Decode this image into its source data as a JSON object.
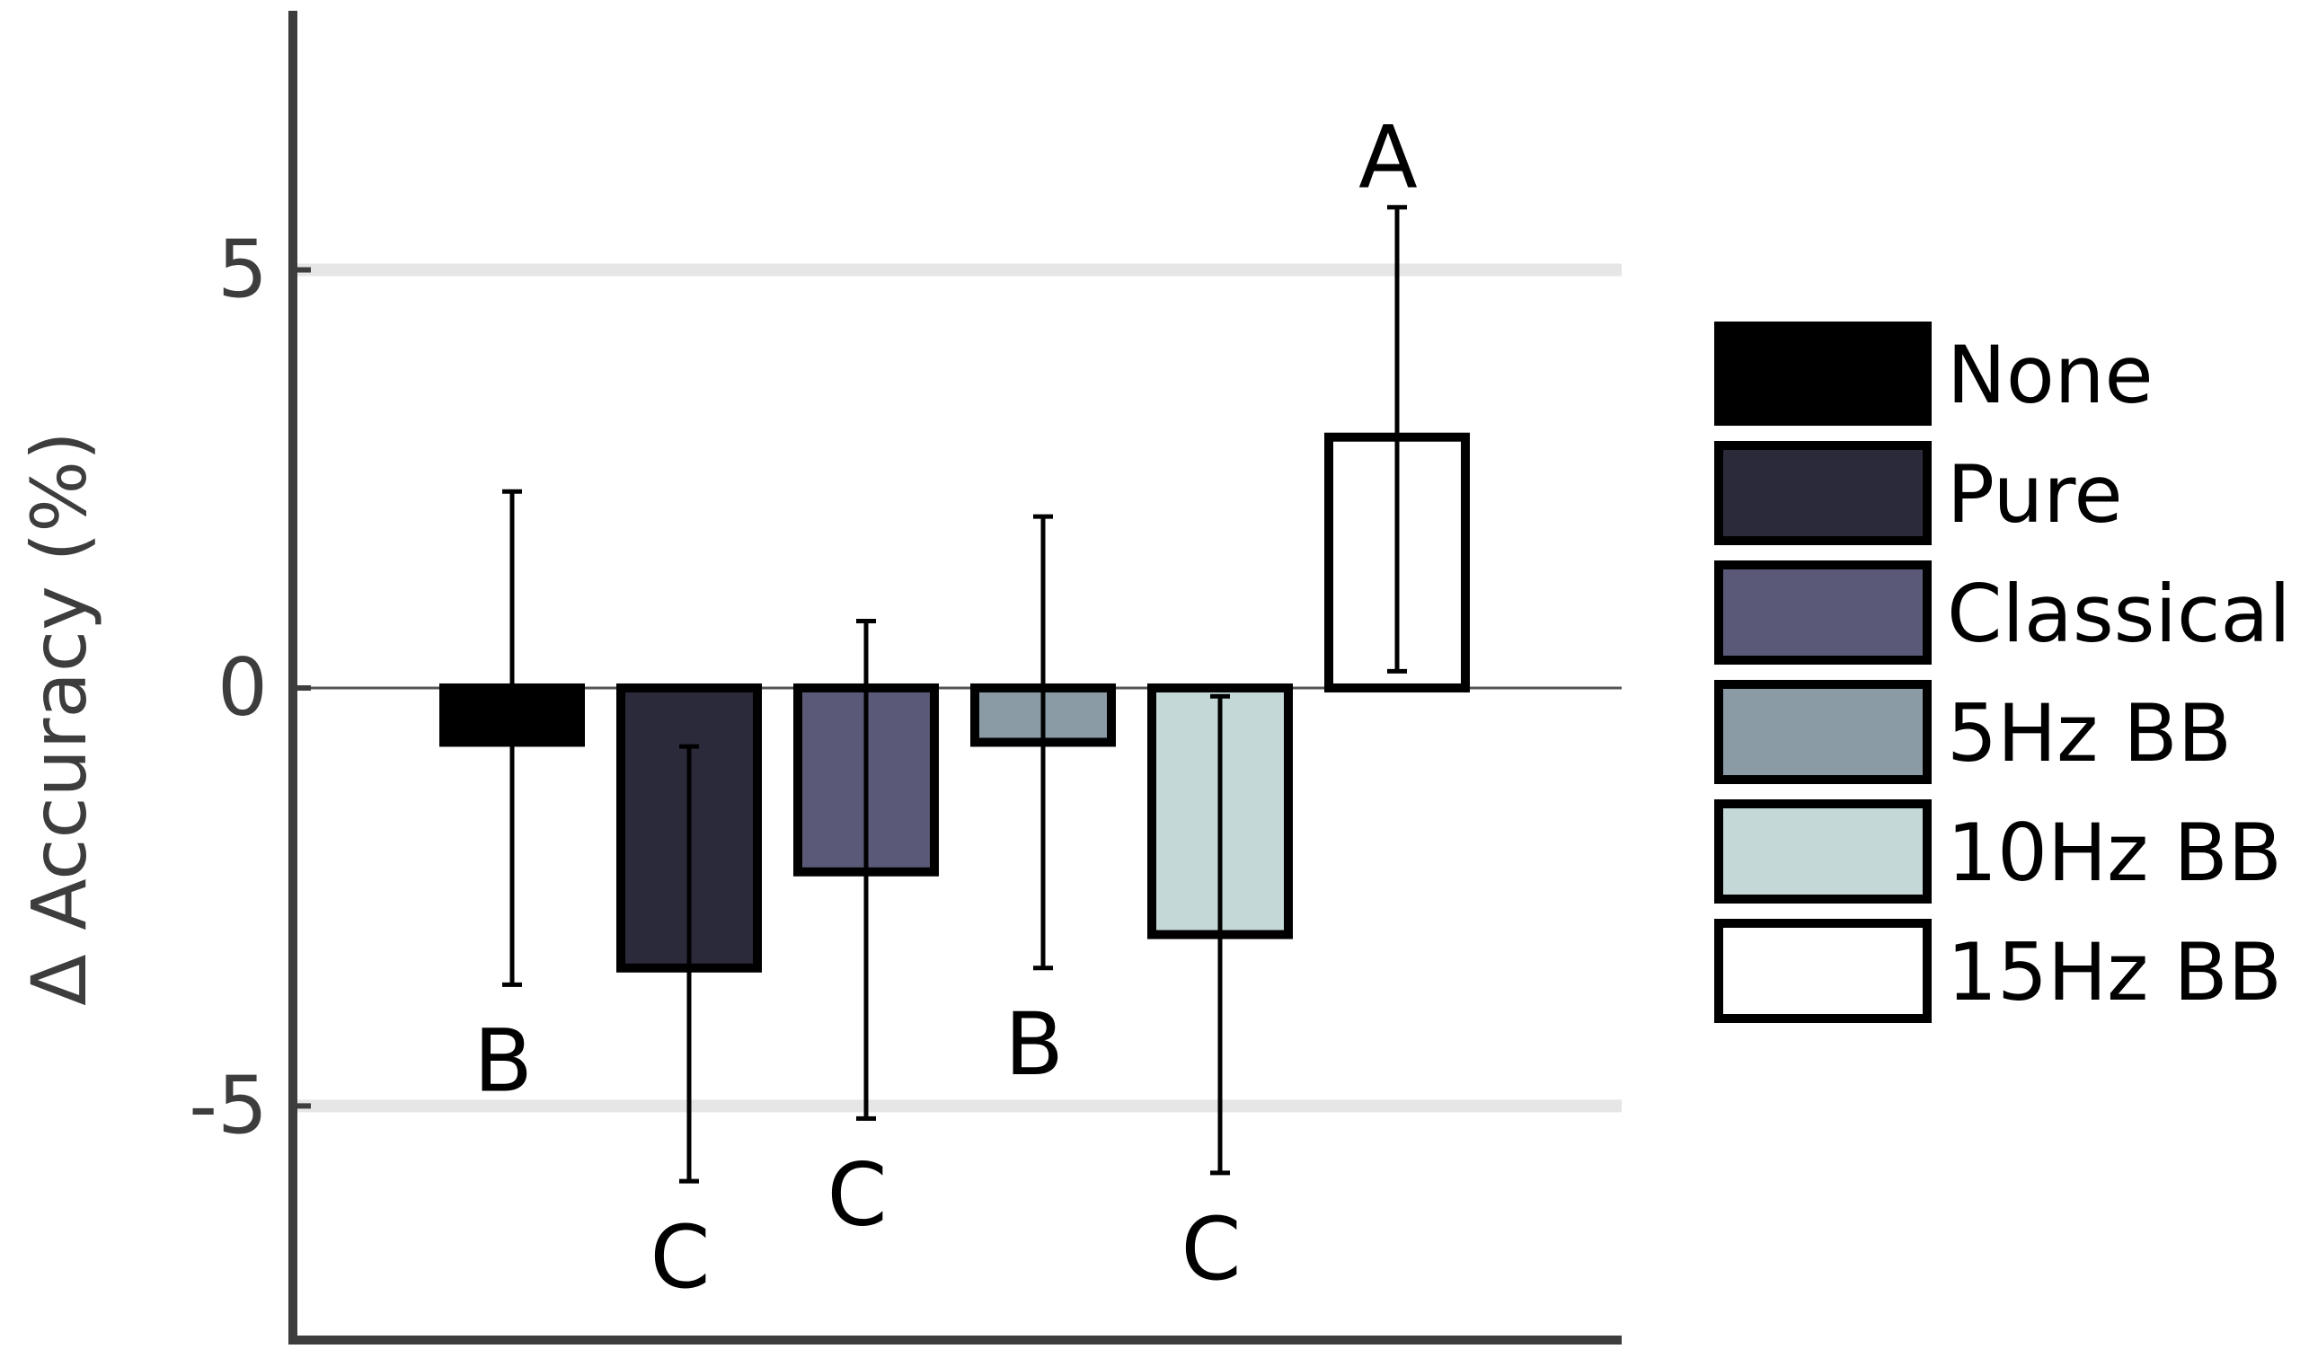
{
  "chart_data": {
    "type": "bar",
    "title": "",
    "xlabel": "",
    "ylabel": "Δ Accuracy (%)",
    "ylim": [
      -7.8,
      8.1
    ],
    "yticks": [
      5,
      0,
      -5
    ],
    "ytick_labels": [
      "5",
      "0",
      "-5"
    ],
    "grid": "horizontal lines at ±5",
    "legend_position": "right",
    "categories": [
      "None",
      "Pure",
      "Classical",
      "5Hz BB",
      "10Hz BB",
      "15Hz BB"
    ],
    "values": [
      -0.65,
      -3.35,
      -2.2,
      -0.65,
      -2.95,
      3.0
    ],
    "error_low": [
      -3.55,
      -5.9,
      -5.15,
      -3.35,
      -5.8,
      0.2
    ],
    "error_high": [
      2.35,
      -0.7,
      0.8,
      2.05,
      -0.1,
      5.75
    ],
    "letters": [
      "B",
      "C",
      "C",
      "B",
      "C",
      "A"
    ],
    "colors": [
      "#000000",
      "#2b2a3b",
      "#5a5a78",
      "#8a9ba6",
      "#c4d8d8",
      "#ffffff"
    ]
  }
}
